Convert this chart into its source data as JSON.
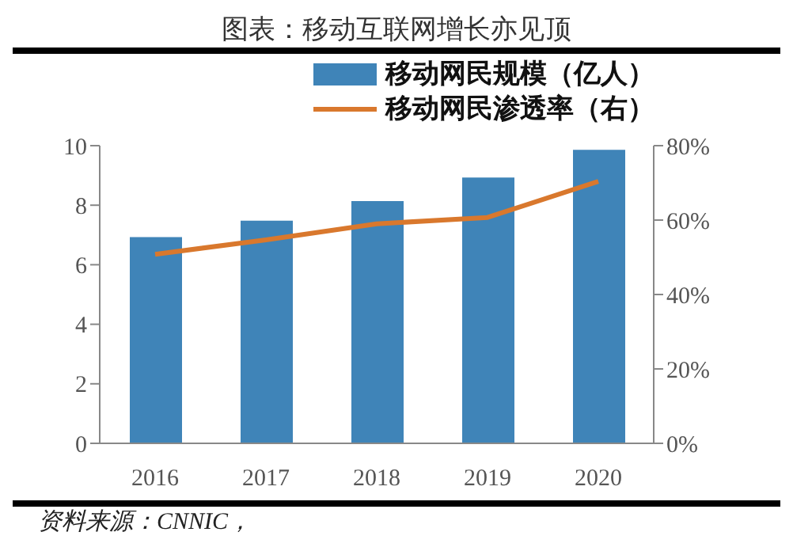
{
  "chart_data": {
    "type": "bar",
    "title": "图表：移动互联网增长亦见顶",
    "categories": [
      "2016",
      "2017",
      "2018",
      "2019",
      "2020"
    ],
    "series": [
      {
        "name": "移动网民规模（亿人）",
        "color": "#3f84b8",
        "values": [
          6.93,
          7.48,
          8.14,
          8.93,
          9.86
        ]
      },
      {
        "name": "移动网民渗透率（右）",
        "type": "line",
        "axis": "y2",
        "color": "#d9782d",
        "values": [
          50.8,
          54.7,
          59.0,
          60.7,
          70.4
        ]
      }
    ],
    "ylim": [
      0,
      10
    ],
    "yticks": [
      0,
      2,
      4,
      6,
      8,
      10
    ],
    "y2lim": [
      0,
      80
    ],
    "y2ticks": [
      {
        "value": 0,
        "label": "0%"
      },
      {
        "value": 20,
        "label": "20%"
      },
      {
        "value": 40,
        "label": "40%"
      },
      {
        "value": 60,
        "label": "60%"
      },
      {
        "value": 80,
        "label": "80%"
      }
    ],
    "grid": false,
    "legend": "top",
    "marker": "none",
    "line_style": "solid",
    "annotations": [
      "资料来源：CNNIC，"
    ]
  }
}
